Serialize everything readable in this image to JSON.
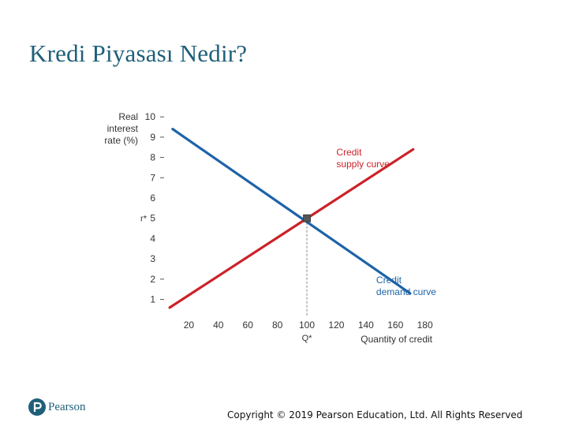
{
  "slide": {
    "title": "Kredi Piyasası Nedir?",
    "copyright": "Copyright © 2019 Pearson Education, Ltd. All Rights Reserved",
    "logo_text": "Pearson"
  },
  "colors": {
    "title": "#1f5f7a",
    "supply": "#cc2229",
    "demand": "#1d63a8",
    "axis_text": "#333333",
    "equilibrium_point": "#555555"
  },
  "chart_data": {
    "type": "line",
    "ylabel_lines": [
      "Real",
      "interest",
      "rate (%)"
    ],
    "xlabel": "Quantity of credit",
    "x_ticks": [
      "20",
      "40",
      "60",
      "80",
      "100",
      "120",
      "140",
      "160",
      "180"
    ],
    "x_tick_values": [
      20,
      40,
      60,
      80,
      100,
      120,
      140,
      160,
      180
    ],
    "y_ticks": [
      "1",
      "2",
      "3",
      "4",
      "5",
      "6",
      "7",
      "8",
      "9",
      "10"
    ],
    "y_tick_values": [
      1,
      2,
      3,
      4,
      5,
      6,
      7,
      8,
      9,
      10
    ],
    "y_dash_ticks": [
      1,
      2,
      7,
      8,
      9,
      10
    ],
    "xlim": [
      0,
      185
    ],
    "ylim": [
      0.4,
      10.2
    ],
    "series": [
      {
        "name": "Credit supply curve",
        "label_lines": [
          "Credit",
          "supply curve"
        ],
        "color": "#cc2229",
        "x": [
          7,
          172
        ],
        "y": [
          0.6,
          8.4
        ]
      },
      {
        "name": "Credit demand curve",
        "label_lines": [
          "Credit",
          "demand curve"
        ],
        "color": "#1d63a8",
        "x": [
          9,
          170
        ],
        "y": [
          9.4,
          1.3
        ]
      }
    ],
    "equilibrium": {
      "x": 100,
      "y": 5,
      "x_label": "Q*",
      "y_label": "r*"
    },
    "grid": false,
    "legend": "inline labels"
  }
}
